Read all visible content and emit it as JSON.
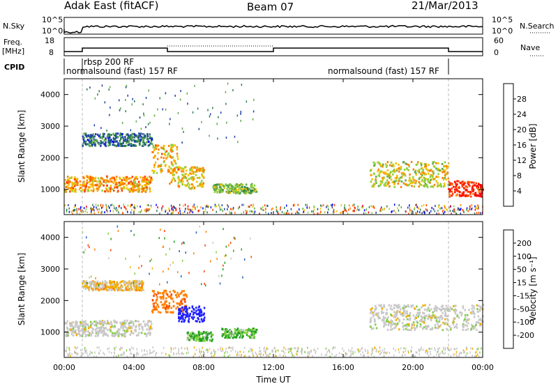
{
  "header": {
    "station": "Adak East (fitACF)",
    "beam": "Beam 07",
    "date": "21/Mar/2013"
  },
  "noise_panel": {
    "left_label": "N.Sky",
    "right_label": "N.Search",
    "left_ticks": [
      "10^5",
      "10^0"
    ],
    "right_ticks": [
      "10^5",
      "10^0"
    ]
  },
  "freq_panel": {
    "left_label_line1": "Freq.",
    "left_label_line2": "[MHz]",
    "right_label": "Nave",
    "left_ticks": [
      "18",
      "8"
    ],
    "right_ticks": [
      "60",
      "0"
    ]
  },
  "cpid_panel": {
    "label": "CPID",
    "programs": [
      {
        "name": "normalsound (fast) 157 RF",
        "start": "00:00",
        "end": "01:00"
      },
      {
        "name": "rbsp 200 RF",
        "start": "01:00",
        "end": "22:00"
      },
      {
        "name": "normalsound (fast) 157 RF",
        "start": "22:00",
        "end": "24:00"
      }
    ]
  },
  "x_axis": {
    "label": "Time UT",
    "ticks": [
      "00:00",
      "04:00",
      "08:00",
      "12:00",
      "16:00",
      "20:00",
      "00:00"
    ]
  },
  "colors": {
    "power_scale": [
      "#0000ff",
      "#1e40a8",
      "#2b7f53",
      "#5fa84a",
      "#90d040",
      "#f0c000",
      "#ff8000",
      "#ff4000",
      "#ff0000"
    ],
    "velocity_scale": [
      "#2020ff",
      "#2060c0",
      "#20a020",
      "#80d040",
      "#c8c8c8",
      "#f0b000",
      "#ff8000",
      "#ff4000",
      "#ff0000"
    ]
  },
  "chart_data": [
    {
      "type": "heatmap",
      "title": "Power",
      "xlabel": "Time UT",
      "ylabel": "Slant Range [km]",
      "xlim": [
        0,
        24
      ],
      "ylim": [
        200,
        4500
      ],
      "y_ticks": [
        1000,
        2000,
        3000,
        4000
      ],
      "colorbar": {
        "label": "Power [dB]",
        "ticks": [
          "4",
          "8",
          "12",
          "16",
          "20",
          "24",
          "28"
        ],
        "range": [
          0,
          32
        ]
      },
      "features": [
        {
          "time_start": 0.0,
          "time_end": 5.0,
          "range_center": 1200,
          "range_width": 500,
          "power": 22
        },
        {
          "time_start": 1.0,
          "time_end": 5.0,
          "range_center": 2600,
          "range_width": 400,
          "power": 8
        },
        {
          "time_start": 5.0,
          "time_end": 6.5,
          "range_center": 2000,
          "range_width": 900,
          "power": 20
        },
        {
          "time_start": 6.0,
          "time_end": 8.0,
          "range_center": 1400,
          "range_width": 700,
          "power": 20
        },
        {
          "time_start": 8.5,
          "time_end": 11.0,
          "range_center": 1050,
          "range_width": 300,
          "power": 14
        },
        {
          "time_start": 17.5,
          "time_end": 22.0,
          "range_center": 1500,
          "range_width": 800,
          "power": 18
        },
        {
          "time_start": 22.0,
          "time_end": 24.0,
          "range_center": 1050,
          "range_width": 500,
          "power": 28
        }
      ]
    },
    {
      "type": "heatmap",
      "title": "Velocity",
      "xlabel": "Time UT",
      "ylabel": "Slant Range [km]",
      "xlim": [
        0,
        24
      ],
      "ylim": [
        200,
        4500
      ],
      "y_ticks": [
        1000,
        2000,
        3000,
        4000
      ],
      "colorbar": {
        "label": "Velocity [m s⁻¹]",
        "ticks": [
          "200",
          "100",
          "50",
          "15",
          "-15",
          "-50",
          "-100",
          "-200"
        ],
        "range": [
          -250,
          250
        ]
      },
      "features": [
        {
          "time_start": 0.0,
          "time_end": 5.0,
          "range_center": 1150,
          "range_width": 500,
          "velocity": 0
        },
        {
          "time_start": 1.0,
          "time_end": 4.5,
          "range_center": 2500,
          "range_width": 300,
          "velocity": -20
        },
        {
          "time_start": 5.0,
          "time_end": 7.0,
          "range_center": 2000,
          "range_width": 700,
          "velocity": -60
        },
        {
          "time_start": 6.5,
          "time_end": 8.0,
          "range_center": 1600,
          "range_width": 500,
          "velocity": 200
        },
        {
          "time_start": 7.0,
          "time_end": 8.5,
          "range_center": 900,
          "range_width": 300,
          "velocity": 30
        },
        {
          "time_start": 9.0,
          "time_end": 11.0,
          "range_center": 1000,
          "range_width": 300,
          "velocity": 30
        },
        {
          "time_start": 17.5,
          "time_end": 24.0,
          "range_center": 1500,
          "range_width": 800,
          "velocity": 0
        }
      ]
    }
  ]
}
